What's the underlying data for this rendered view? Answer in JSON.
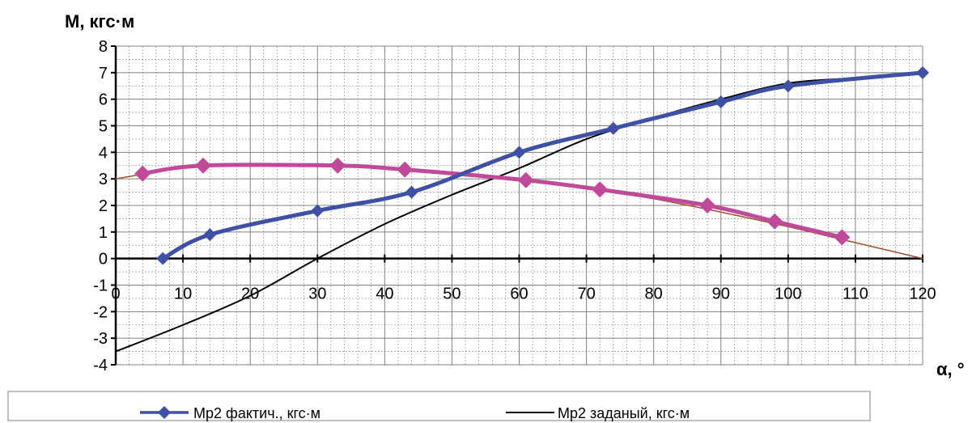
{
  "chart_data": {
    "type": "line",
    "ylabel": "M, кгс·м",
    "xlabel": "α, °",
    "xlim": [
      0,
      120
    ],
    "ylim": [
      -4,
      8
    ],
    "x_ticks": [
      0,
      10,
      20,
      30,
      40,
      50,
      60,
      70,
      80,
      90,
      100,
      110,
      120
    ],
    "y_ticks": [
      -4,
      -3,
      -2,
      -1,
      0,
      1,
      2,
      3,
      4,
      5,
      6,
      7,
      8
    ],
    "grid": true,
    "legend_position": "bottom",
    "series": [
      {
        "name": "Мр2 фактич., кгс·м",
        "color": "#3F51A5",
        "marker": "diamond",
        "smooth": true,
        "x": [
          7,
          14,
          30,
          44,
          60,
          74,
          90,
          100,
          120
        ],
        "y": [
          0,
          0.9,
          1.8,
          2.5,
          4.0,
          4.9,
          5.9,
          6.5,
          7.0
        ]
      },
      {
        "name": "Мр2 заданый, кгс·м",
        "color": "#000000",
        "marker": "none",
        "smooth": true,
        "x": [
          0,
          10,
          20,
          30,
          40,
          50,
          60,
          70,
          80,
          90,
          100,
          110,
          120
        ],
        "y": [
          -3.5,
          -2.5,
          -1.4,
          0,
          1.3,
          2.4,
          3.4,
          4.5,
          5.3,
          6.0,
          6.6,
          6.8,
          7.0
        ]
      },
      {
        "name": "",
        "color": "#C1499A",
        "marker": "diamond",
        "smooth": true,
        "x": [
          4,
          13,
          33,
          43,
          61,
          72,
          88,
          98,
          108
        ],
        "y": [
          3.2,
          3.5,
          3.5,
          3.35,
          2.95,
          2.6,
          2.0,
          1.4,
          0.8
        ]
      },
      {
        "name": "",
        "color": "#A0522D",
        "marker": "none",
        "smooth": true,
        "x": [
          0,
          10,
          20,
          30,
          40,
          50,
          60,
          70,
          80,
          90,
          100,
          110,
          120
        ],
        "y": [
          3.0,
          3.4,
          3.5,
          3.5,
          3.4,
          3.2,
          2.95,
          2.65,
          2.25,
          1.75,
          1.2,
          0.6,
          0.0
        ]
      }
    ]
  }
}
